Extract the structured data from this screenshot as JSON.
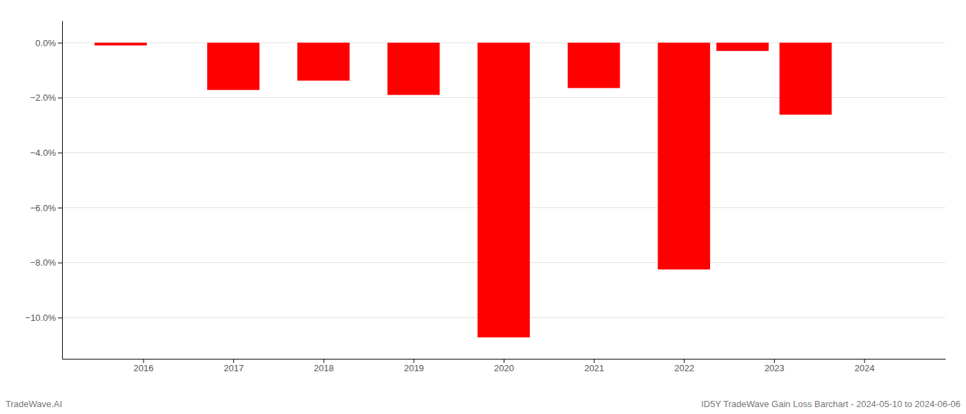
{
  "chart_data": {
    "type": "bar",
    "title": "ID5Y TradeWave Gain Loss Barchart - 2024-05-10 to 2024-06-06",
    "annotations": [
      "TradeWave.AI"
    ],
    "x": [
      2015.75,
      2017.0,
      2018.0,
      2019.0,
      2020.0,
      2021.0,
      2022.0,
      2022.65,
      2023.35
    ],
    "values": [
      -0.1,
      -1.72,
      -1.38,
      -1.9,
      -10.72,
      -1.65,
      -8.25,
      -0.3,
      -2.62
    ],
    "color": "#ff0000",
    "xlim": [
      2015.1,
      2024.9
    ],
    "xticks": [
      2016,
      2017,
      2018,
      2019,
      2020,
      2021,
      2022,
      2023,
      2024
    ],
    "ylim": [
      -11.5,
      0.8
    ],
    "yticks": [
      {
        "value": 0.0,
        "label": "0.0%"
      },
      {
        "value": -2.0,
        "label": "−2.0%"
      },
      {
        "value": -4.0,
        "label": "−4.0%"
      },
      {
        "value": -6.0,
        "label": "−6.0%"
      },
      {
        "value": -8.0,
        "label": "−8.0%"
      },
      {
        "value": -10.0,
        "label": "−10.0%"
      }
    ],
    "grid": true
  }
}
